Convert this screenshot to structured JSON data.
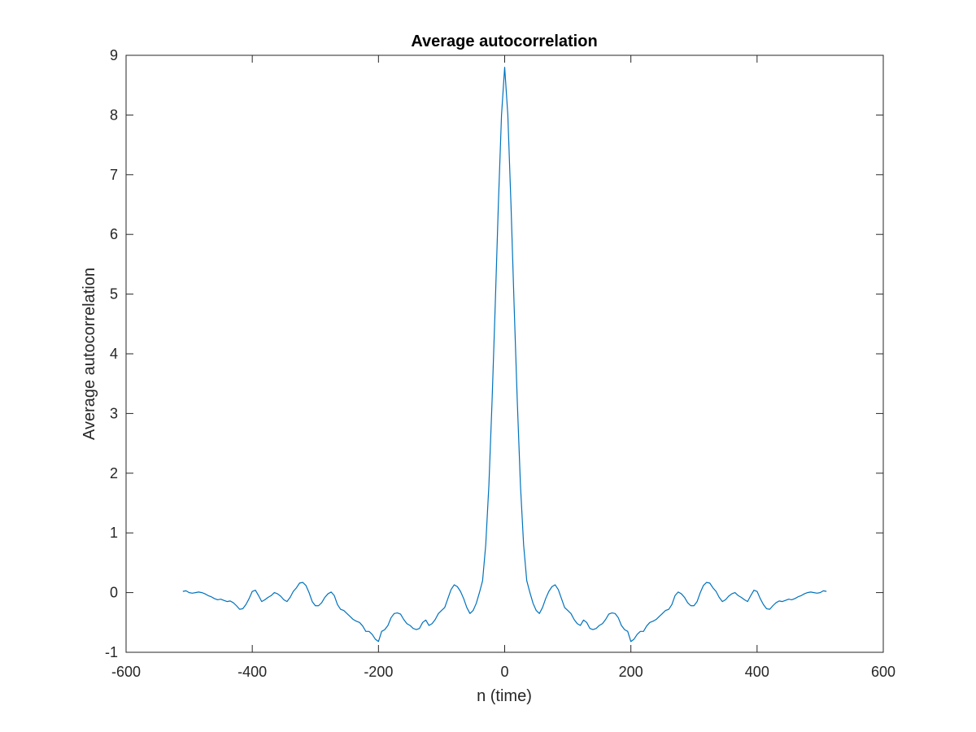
{
  "chart_data": {
    "type": "line",
    "title": "Average autocorrelation",
    "xlabel": "n (time)",
    "ylabel": "Average autocorrelation",
    "xlim": [
      -600,
      600
    ],
    "ylim": [
      -1,
      9
    ],
    "xticks": [
      -600,
      -400,
      -200,
      0,
      200,
      400,
      600
    ],
    "yticks": [
      -1,
      0,
      1,
      2,
      3,
      4,
      5,
      6,
      7,
      8,
      9
    ],
    "grid": false,
    "line_color": "#0072BD",
    "axis_color": "#262626",
    "series": [
      {
        "x": [
          -510,
          -505,
          -500,
          -495,
          -490,
          -485,
          -480,
          -475,
          -470,
          -465,
          -460,
          -455,
          -450,
          -445,
          -440,
          -435,
          -430,
          -425,
          -420,
          -415,
          -410,
          -405,
          -400,
          -395,
          -390,
          -385,
          -380,
          -375,
          -370,
          -365,
          -360,
          -355,
          -350,
          -345,
          -340,
          -335,
          -330,
          -325,
          -320,
          -315,
          -310,
          -305,
          -300,
          -295,
          -290,
          -285,
          -280,
          -275,
          -270,
          -265,
          -260,
          -255,
          -250,
          -245,
          -240,
          -235,
          -230,
          -225,
          -220,
          -215,
          -210,
          -205,
          -200,
          -195,
          -190,
          -185,
          -180,
          -175,
          -170,
          -165,
          -160,
          -155,
          -150,
          -145,
          -140,
          -135,
          -130,
          -125,
          -120,
          -115,
          -110,
          -105,
          -100,
          -95,
          -90,
          -85,
          -80,
          -75,
          -70,
          -65,
          -60,
          -55,
          -50,
          -45,
          -40,
          -35,
          -30,
          -25,
          -20,
          -15,
          -10,
          -5,
          0,
          5,
          10,
          15,
          20,
          25,
          30,
          35,
          40,
          45,
          50,
          55,
          60,
          65,
          70,
          75,
          80,
          85,
          90,
          95,
          100,
          105,
          110,
          115,
          120,
          125,
          130,
          135,
          140,
          145,
          150,
          155,
          160,
          165,
          170,
          175,
          180,
          185,
          190,
          195,
          200,
          205,
          210,
          215,
          220,
          225,
          230,
          235,
          240,
          245,
          250,
          255,
          260,
          265,
          270,
          275,
          280,
          285,
          290,
          295,
          300,
          305,
          310,
          315,
          320,
          325,
          330,
          335,
          340,
          345,
          350,
          355,
          360,
          365,
          370,
          375,
          380,
          385,
          390,
          395,
          400,
          405,
          410,
          415,
          420,
          425,
          430,
          435,
          440,
          445,
          450,
          455,
          460,
          465,
          470,
          475,
          480,
          485,
          490,
          495,
          500,
          505,
          510
        ],
        "y": [
          0.02,
          0.03,
          0.0,
          -0.01,
          0.0,
          0.01,
          0.0,
          -0.02,
          -0.05,
          -0.07,
          -0.1,
          -0.12,
          -0.11,
          -0.13,
          -0.15,
          -0.14,
          -0.17,
          -0.22,
          -0.28,
          -0.27,
          -0.2,
          -0.1,
          0.02,
          0.04,
          -0.05,
          -0.15,
          -0.12,
          -0.08,
          -0.05,
          0.0,
          -0.02,
          -0.06,
          -0.12,
          -0.15,
          -0.08,
          0.02,
          0.08,
          0.16,
          0.17,
          0.12,
          0.0,
          -0.15,
          -0.22,
          -0.22,
          -0.17,
          -0.08,
          -0.02,
          0.01,
          -0.05,
          -0.2,
          -0.28,
          -0.3,
          -0.35,
          -0.4,
          -0.45,
          -0.48,
          -0.5,
          -0.56,
          -0.65,
          -0.65,
          -0.7,
          -0.78,
          -0.82,
          -0.65,
          -0.62,
          -0.55,
          -0.42,
          -0.35,
          -0.34,
          -0.36,
          -0.45,
          -0.52,
          -0.55,
          -0.6,
          -0.62,
          -0.6,
          -0.5,
          -0.46,
          -0.55,
          -0.52,
          -0.45,
          -0.35,
          -0.3,
          -0.25,
          -0.1,
          0.05,
          0.13,
          0.1,
          0.02,
          -0.1,
          -0.25,
          -0.35,
          -0.3,
          -0.18,
          0.0,
          0.2,
          0.8,
          1.8,
          3.2,
          4.8,
          6.5,
          8.0,
          8.8,
          8.0,
          6.5,
          4.8,
          3.2,
          1.8,
          0.8,
          0.2,
          0.0,
          -0.18,
          -0.3,
          -0.35,
          -0.25,
          -0.1,
          0.02,
          0.1,
          0.13,
          0.05,
          -0.1,
          -0.25,
          -0.3,
          -0.35,
          -0.45,
          -0.52,
          -0.55,
          -0.46,
          -0.5,
          -0.6,
          -0.62,
          -0.6,
          -0.55,
          -0.52,
          -0.45,
          -0.36,
          -0.34,
          -0.35,
          -0.42,
          -0.55,
          -0.62,
          -0.65,
          -0.82,
          -0.78,
          -0.7,
          -0.65,
          -0.65,
          -0.56,
          -0.5,
          -0.48,
          -0.45,
          -0.4,
          -0.35,
          -0.3,
          -0.28,
          -0.2,
          -0.05,
          0.01,
          -0.02,
          -0.08,
          -0.17,
          -0.22,
          -0.22,
          -0.15,
          0.0,
          0.12,
          0.17,
          0.16,
          0.08,
          0.02,
          -0.08,
          -0.15,
          -0.12,
          -0.06,
          -0.02,
          0.0,
          -0.05,
          -0.08,
          -0.12,
          -0.15,
          -0.05,
          0.04,
          0.02,
          -0.1,
          -0.2,
          -0.27,
          -0.28,
          -0.22,
          -0.17,
          -0.14,
          -0.15,
          -0.13,
          -0.11,
          -0.12,
          -0.1,
          -0.07,
          -0.05,
          -0.02,
          0.0,
          0.01,
          0.0,
          -0.01,
          0.0,
          0.03,
          0.02
        ]
      }
    ]
  }
}
